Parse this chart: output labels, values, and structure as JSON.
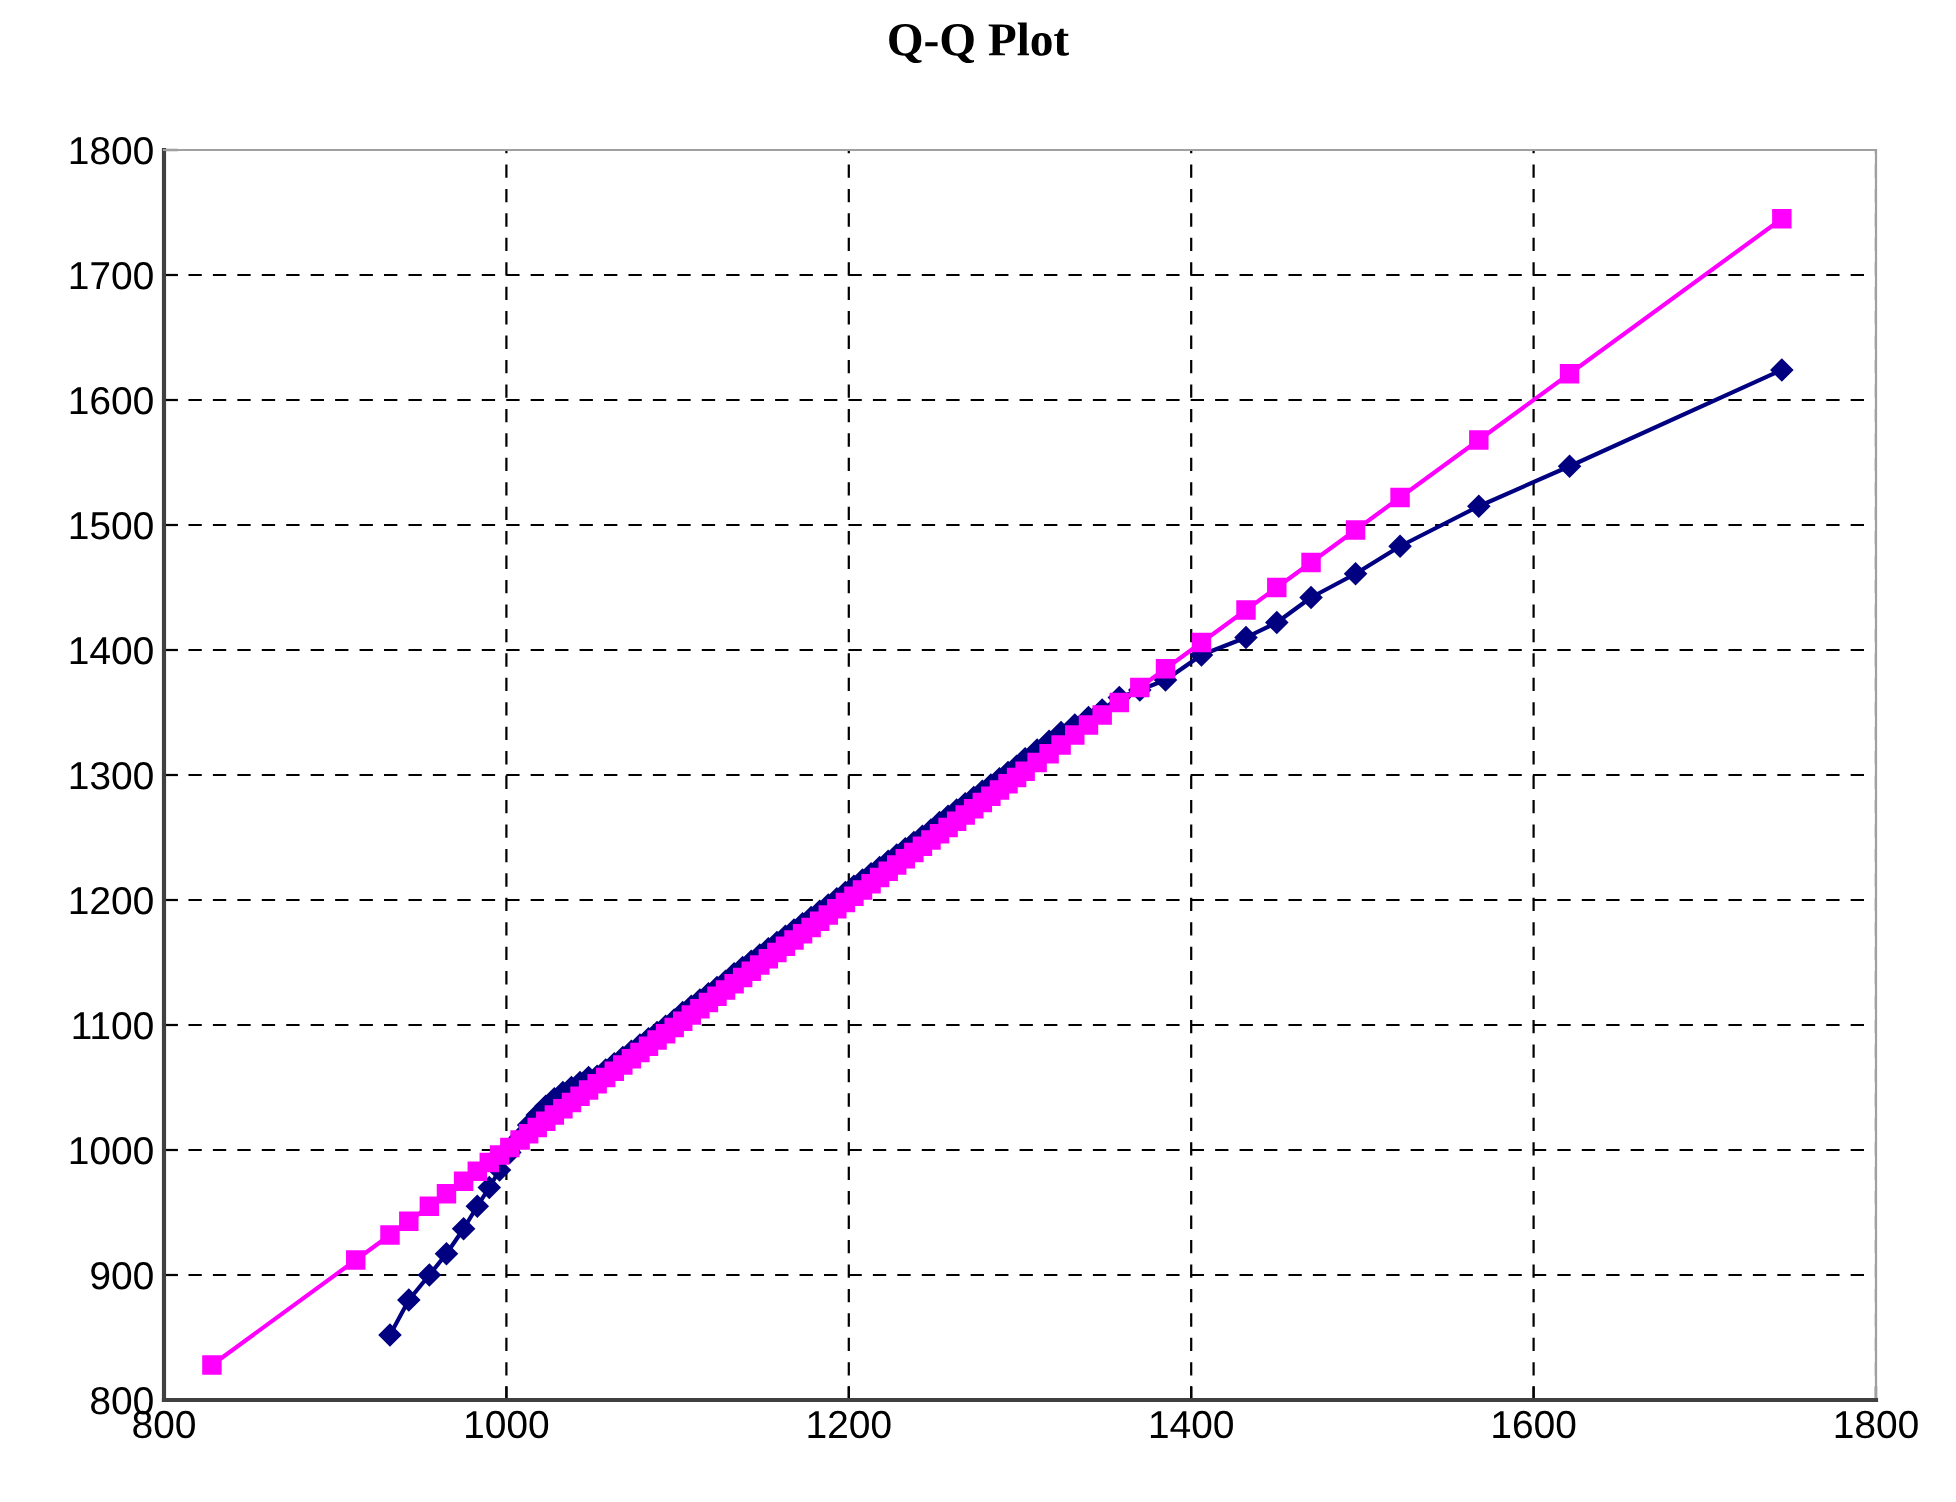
{
  "chart_data": {
    "type": "line",
    "title": "Q-Q Plot",
    "x": [
      828,
      912,
      932,
      943,
      955,
      965,
      975,
      983,
      990,
      996,
      1002,
      1008,
      1013,
      1018,
      1023,
      1028,
      1033,
      1038,
      1043,
      1048,
      1053,
      1058,
      1063,
      1068,
      1073,
      1078,
      1083,
      1088,
      1093,
      1098,
      1103,
      1108,
      1113,
      1118,
      1123,
      1128,
      1133,
      1138,
      1143,
      1148,
      1153,
      1158,
      1163,
      1168,
      1173,
      1178,
      1183,
      1188,
      1193,
      1198,
      1203,
      1208,
      1213,
      1218,
      1223,
      1228,
      1233,
      1238,
      1243,
      1248,
      1253,
      1258,
      1263,
      1268,
      1273,
      1278,
      1283,
      1288,
      1293,
      1298,
      1303,
      1310,
      1317,
      1324,
      1332,
      1340,
      1348,
      1358,
      1370,
      1385,
      1406,
      1432,
      1450,
      1470,
      1496,
      1522,
      1568,
      1621,
      1745
    ],
    "series": [
      {
        "color": "#000080",
        "marker": "diamond",
        "values": [
          null,
          null,
          852,
          880,
          900,
          917,
          937,
          955,
          970,
          984,
          998,
          1010,
          1020,
          1028,
          1035,
          1041,
          1046,
          1050,
          1054,
          1058,
          1059,
          1064,
          1069,
          1074,
          1079,
          1084,
          1089,
          1094,
          1099,
          1104,
          1110,
          1115,
          1120,
          1125,
          1130,
          1135,
          1141,
          1146,
          1151,
          1156,
          1161,
          1166,
          1171,
          1176,
          1181,
          1186,
          1191,
          1196,
          1201,
          1206,
          1211,
          1216,
          1221,
          1226,
          1231,
          1236,
          1241,
          1246,
          1251,
          1256,
          1262,
          1267,
          1272,
          1277,
          1282,
          1287,
          1292,
          1297,
          1302,
          1307,
          1313,
          1320,
          1327,
          1334,
          1340,
          1346,
          1352,
          1362,
          1368,
          1376,
          1396,
          1410,
          1422,
          1442,
          1461,
          1483,
          1515,
          1547,
          1624
        ]
      },
      {
        "color": "#ff00ff",
        "marker": "square",
        "values": [
          828,
          912,
          932,
          943,
          955,
          965,
          975,
          983,
          990,
          996,
          1002,
          1008,
          1013,
          1018,
          1023,
          1028,
          1033,
          1038,
          1043,
          1048,
          1053,
          1058,
          1063,
          1068,
          1073,
          1078,
          1083,
          1088,
          1093,
          1098,
          1103,
          1108,
          1113,
          1118,
          1123,
          1128,
          1133,
          1138,
          1143,
          1148,
          1153,
          1158,
          1163,
          1168,
          1173,
          1178,
          1183,
          1188,
          1193,
          1198,
          1203,
          1208,
          1213,
          1218,
          1223,
          1228,
          1233,
          1238,
          1243,
          1248,
          1253,
          1258,
          1263,
          1268,
          1273,
          1278,
          1283,
          1288,
          1293,
          1298,
          1303,
          1310,
          1317,
          1324,
          1332,
          1340,
          1348,
          1358,
          1370,
          1385,
          1406,
          1432,
          1450,
          1470,
          1496,
          1522,
          1568,
          1621,
          1745
        ]
      }
    ],
    "xlim": [
      800,
      1800
    ],
    "xticks": [
      800,
      1000,
      1200,
      1400,
      1600,
      1800
    ],
    "ylim": [
      800,
      1800
    ],
    "yticks": [
      800,
      900,
      1000,
      1100,
      1200,
      1300,
      1400,
      1500,
      1600,
      1700,
      1800
    ],
    "grid": true,
    "line_style": "solid"
  }
}
